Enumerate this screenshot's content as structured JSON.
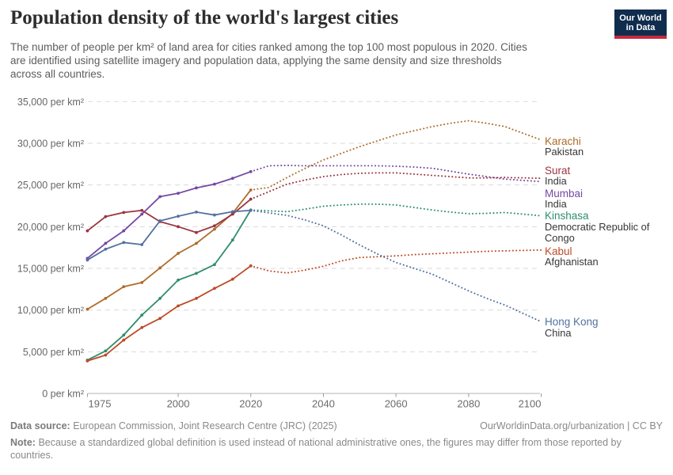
{
  "header": {
    "title": "Population density of the world's largest cities",
    "subtitle_lines": [
      "The number of people per km² of land area for cities ranked among the top 100 most populous in 2020. Cities",
      "are identified using satellite imagery and population data, applying the same density and size thresholds",
      "across all countries."
    ],
    "logo": {
      "line1": "Our World",
      "line2": "in Data"
    }
  },
  "footer": {
    "source_label": "Data source:",
    "source_text": "European Commission, Joint Research Centre (JRC) (2025)",
    "credit": "OurWorldinData.org/urbanization | CC BY",
    "note_label": "Note:",
    "note_lines": [
      "Because a standardized global definition is used instead of national administrative ones, the figures may differ from those reported by",
      "countries."
    ]
  },
  "chart_data": {
    "type": "line",
    "title": "Population density of the world's largest cities",
    "unit": "per km²",
    "xlabel": "",
    "ylabel": "",
    "x_range": [
      1975,
      2100
    ],
    "ylim": [
      0,
      35000
    ],
    "y_ticks": [
      0,
      5000,
      10000,
      15000,
      20000,
      25000,
      30000,
      35000
    ],
    "y_tick_suffix": " per km²",
    "x_ticks": [
      1975,
      2000,
      2020,
      2040,
      2060,
      2080,
      2100
    ],
    "grid": "horizontal-dashed",
    "legend_position": "right-inline-labels",
    "line_style_observed": "solid-with-markers",
    "line_style_projected": "dotted",
    "observed_years": [
      1975,
      1980,
      1985,
      1990,
      1995,
      2000,
      2005,
      2010,
      2015,
      2020
    ],
    "projected_years": [
      2020,
      2025,
      2030,
      2035,
      2040,
      2045,
      2050,
      2055,
      2060,
      2065,
      2070,
      2075,
      2080,
      2085,
      2090,
      2095,
      2100
    ],
    "series": [
      {
        "id": "karachi",
        "city": "Karachi",
        "country": "Pakistan",
        "country_lines": [
          "Pakistan"
        ],
        "color": "#ad6c29",
        "observed": [
          10100,
          11400,
          12800,
          13300,
          15050,
          16800,
          18000,
          19700,
          21600,
          24400
        ],
        "projected": [
          24400,
          24700,
          25900,
          27000,
          28000,
          28800,
          29600,
          30300,
          31000,
          31500,
          32000,
          32400,
          32700,
          32400,
          32000,
          31200,
          30400
        ]
      },
      {
        "id": "surat",
        "city": "Surat",
        "country": "India",
        "country_lines": [
          "India"
        ],
        "color": "#9b3441",
        "observed": [
          19500,
          21200,
          21700,
          21950,
          20600,
          20000,
          19300,
          20100,
          21500,
          23300
        ],
        "projected": [
          23300,
          24200,
          25100,
          25600,
          26000,
          26250,
          26400,
          26450,
          26450,
          26300,
          26150,
          26000,
          25850,
          25850,
          25900,
          25850,
          25800
        ]
      },
      {
        "id": "mumbai",
        "city": "Mumbai",
        "country": "India",
        "country_lines": [
          "India"
        ],
        "color": "#7449a1",
        "observed": [
          16200,
          18000,
          19500,
          21500,
          23600,
          24000,
          24650,
          25100,
          25800,
          26600
        ],
        "projected": [
          26600,
          27300,
          27350,
          27300,
          27300,
          27300,
          27300,
          27300,
          27250,
          27150,
          27000,
          26650,
          26300,
          26000,
          25700,
          25550,
          25400
        ]
      },
      {
        "id": "kinshasa",
        "city": "Kinshasa",
        "country": "Democratic Republic of Congo",
        "country_lines": [
          "Democratic Republic of",
          "Congo"
        ],
        "color": "#2e8e6b",
        "observed": [
          4000,
          5100,
          7000,
          9400,
          11400,
          13600,
          14400,
          15450,
          18400,
          22000
        ],
        "projected": [
          22000,
          21900,
          21800,
          22100,
          22450,
          22600,
          22700,
          22700,
          22600,
          22300,
          22000,
          21750,
          21550,
          21600,
          21700,
          21500,
          21300
        ]
      },
      {
        "id": "kabul",
        "city": "Kabul",
        "country": "Afghanistan",
        "country_lines": [
          "Afghanistan"
        ],
        "color": "#bd4b28",
        "observed": [
          3900,
          4600,
          6400,
          7900,
          9000,
          10500,
          11400,
          12600,
          13700,
          15300
        ],
        "projected": [
          15300,
          14700,
          14450,
          14800,
          15250,
          15900,
          16300,
          16400,
          16500,
          16650,
          16750,
          16850,
          16950,
          17050,
          17100,
          17150,
          17200
        ]
      },
      {
        "id": "hongkong",
        "city": "Hong Kong",
        "country": "China",
        "country_lines": [
          "China"
        ],
        "color": "#53719f",
        "observed": [
          16000,
          17300,
          18100,
          17850,
          20700,
          21250,
          21750,
          21400,
          21800,
          21950
        ],
        "projected": [
          21950,
          21650,
          21350,
          20800,
          20100,
          19000,
          17800,
          16700,
          15700,
          15000,
          14300,
          13300,
          12300,
          11400,
          10600,
          9600,
          8600
        ]
      }
    ]
  }
}
